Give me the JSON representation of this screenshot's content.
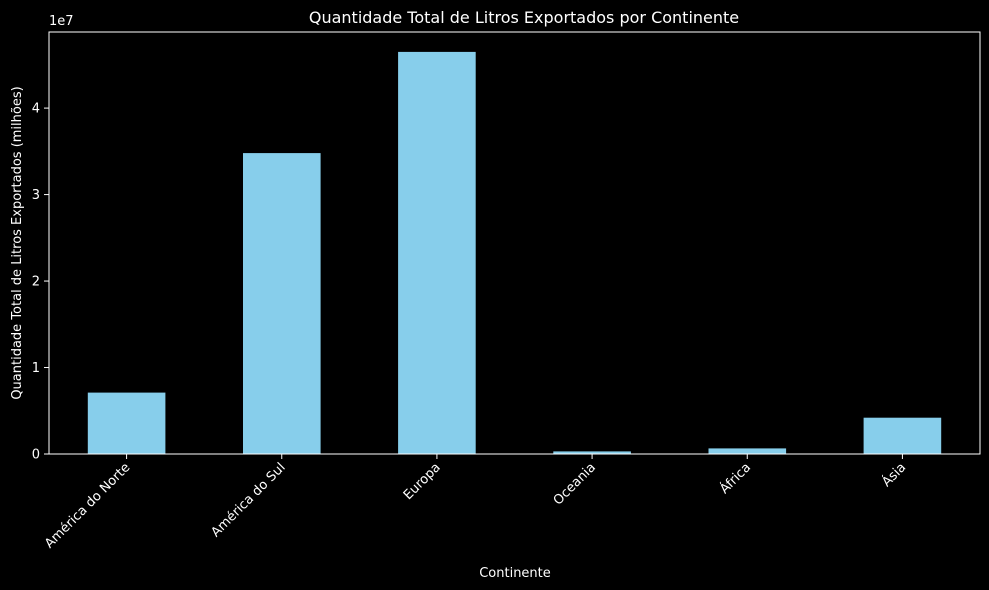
{
  "chart_data": {
    "type": "bar",
    "title": "Quantidade Total de Litros Exportados por Continente",
    "xlabel": "Continente",
    "ylabel": "Quantidade Total de Litros Exportados (milhões)",
    "offset_label": "1e7",
    "categories": [
      "América do Norte",
      "América do Sul",
      "Europa",
      "Oceania",
      "África",
      "Ásia"
    ],
    "values": [
      7100000,
      34800000,
      46500000,
      300000,
      650000,
      4200000
    ],
    "yticks": [
      0,
      10000000,
      20000000,
      30000000,
      40000000
    ],
    "ytick_labels": [
      "0",
      "1",
      "2",
      "3",
      "4"
    ],
    "ylim": [
      0,
      48800000
    ],
    "grid": false,
    "colors": {
      "bar": "#87ceeb",
      "background": "#000000",
      "axes": "#ffffff",
      "text": "#ffffff"
    }
  }
}
